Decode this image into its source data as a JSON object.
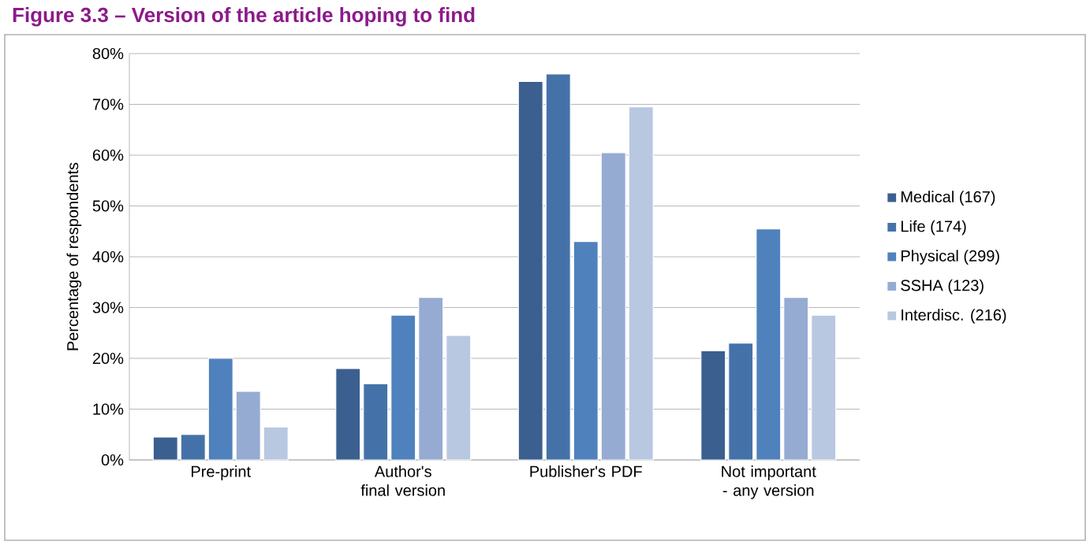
{
  "chart_data": {
    "type": "bar",
    "title": "Figure 3.3 – Version of the article hoping to find",
    "ylabel": "Percentage of respondents",
    "categories": [
      "Pre-print",
      "Author's final version",
      "Publisher's PDF",
      "Not important - any version"
    ],
    "series": [
      {
        "name": "Medical  (167)",
        "color": "#3b5f8f",
        "values": [
          4.5,
          18,
          74.5,
          21.5
        ]
      },
      {
        "name": "Life  (174)",
        "color": "#4472a8",
        "values": [
          5,
          15,
          76,
          23
        ]
      },
      {
        "name": "Physical (299)",
        "color": "#4f81bd",
        "values": [
          20,
          28.5,
          43,
          45.5
        ]
      },
      {
        "name": "SSHA (123)",
        "color": "#95abd2",
        "values": [
          13.5,
          32,
          60.5,
          32
        ]
      },
      {
        "name": "Interdisc. (216)",
        "color": "#b9c8e1",
        "values": [
          6.5,
          24.5,
          69.5,
          28.5
        ]
      }
    ],
    "ylim": [
      0,
      80
    ],
    "yticks": [
      {
        "value": 0,
        "label": "0%"
      },
      {
        "value": 10,
        "label": "10%"
      },
      {
        "value": 20,
        "label": "20%"
      },
      {
        "value": 30,
        "label": "30%"
      },
      {
        "value": 40,
        "label": "40%"
      },
      {
        "value": 50,
        "label": "50%"
      },
      {
        "value": 60,
        "label": "60%"
      },
      {
        "value": 70,
        "label": "70%"
      },
      {
        "value": 80,
        "label": "80%"
      }
    ],
    "grid": "y",
    "legend": "right"
  }
}
